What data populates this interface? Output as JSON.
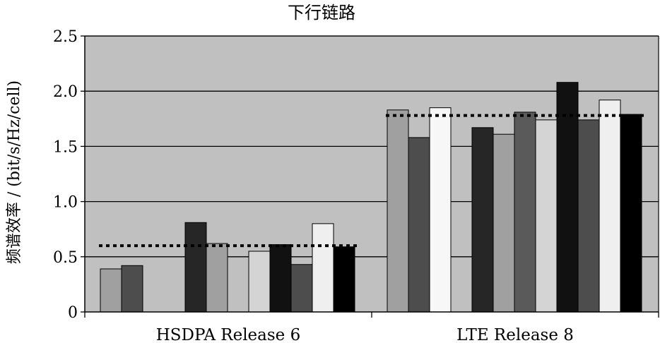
{
  "chart_data": {
    "type": "bar",
    "title": "下行链路",
    "ylabel": "频谱效率 / (bit/s/Hz/cell)",
    "xlabel": "",
    "ylim": [
      0,
      2.5
    ],
    "yticks": [
      "0",
      "0.5",
      "1.0",
      "1.5",
      "2.0",
      "2.5"
    ],
    "grid": true,
    "legend": "none",
    "plot_background": "#c0c0c0",
    "groups": [
      {
        "label": "HSDPA Release 6",
        "values": [
          0.39,
          0.42,
          null,
          null,
          0.81,
          0.62,
          null,
          0.55,
          0.61,
          0.43,
          0.8,
          0.59
        ],
        "colors": [
          "#a0a0a0",
          "#4d4d4d",
          null,
          null,
          "#262626",
          "#a0a0a0",
          null,
          "#d4d4d4",
          "#111111",
          "#4d4d4d",
          "#efefef",
          "#000000"
        ],
        "average": 0.6
      },
      {
        "label": "LTE  Release 8",
        "values": [
          1.83,
          1.58,
          1.85,
          null,
          1.67,
          1.61,
          1.81,
          1.74,
          2.08,
          1.74,
          1.92,
          1.79
        ],
        "colors": [
          "#a0a0a0",
          "#4d4d4d",
          "#f7f7f7",
          null,
          "#262626",
          "#a0a0a0",
          "#5a5a5a",
          "#d4d4d4",
          "#111111",
          "#4d4d4d",
          "#efefef",
          "#000000"
        ],
        "average": 1.78
      }
    ]
  }
}
